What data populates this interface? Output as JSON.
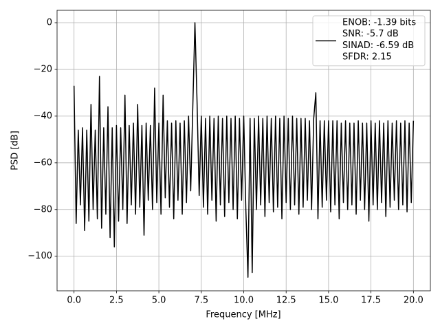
{
  "chart_data": {
    "type": "line",
    "xlabel": "Frequency [MHz]",
    "ylabel": "PSD [dB]",
    "x": [
      0,
      0.125,
      0.25,
      0.375,
      0.5,
      0.625,
      0.75,
      0.875,
      1,
      1.125,
      1.25,
      1.375,
      1.5,
      1.625,
      1.75,
      1.875,
      2,
      2.125,
      2.25,
      2.375,
      2.5,
      2.625,
      2.75,
      2.875,
      3,
      3.125,
      3.25,
      3.375,
      3.5,
      3.625,
      3.75,
      3.875,
      4,
      4.125,
      4.25,
      4.375,
      4.5,
      4.625,
      4.75,
      4.875,
      5,
      5.125,
      5.25,
      5.375,
      5.5,
      5.625,
      5.75,
      5.875,
      6,
      6.125,
      6.25,
      6.375,
      6.5,
      6.625,
      6.75,
      6.875,
      7,
      7.125,
      7.25,
      7.375,
      7.5,
      7.625,
      7.75,
      7.875,
      8,
      8.125,
      8.25,
      8.375,
      8.5,
      8.625,
      8.75,
      8.875,
      9,
      9.125,
      9.25,
      9.375,
      9.5,
      9.625,
      9.75,
      9.875,
      10,
      10.125,
      10.25,
      10.375,
      10.5,
      10.625,
      10.75,
      10.875,
      11,
      11.125,
      11.25,
      11.375,
      11.5,
      11.625,
      11.75,
      11.875,
      12,
      12.125,
      12.25,
      12.375,
      12.5,
      12.625,
      12.75,
      12.875,
      13,
      13.125,
      13.25,
      13.375,
      13.5,
      13.625,
      13.75,
      13.875,
      14,
      14.125,
      14.25,
      14.375,
      14.5,
      14.625,
      14.75,
      14.875,
      15,
      15.125,
      15.25,
      15.375,
      15.5,
      15.625,
      15.75,
      15.875,
      16,
      16.125,
      16.25,
      16.375,
      16.5,
      16.625,
      16.75,
      16.875,
      17,
      17.125,
      17.25,
      17.375,
      17.5,
      17.625,
      17.75,
      17.875,
      18,
      18.125,
      18.25,
      18.375,
      18.5,
      18.625,
      18.75,
      18.875,
      19,
      19.125,
      19.25,
      19.375,
      19.5,
      19.625,
      19.75,
      19.875,
      20
    ],
    "series": [
      {
        "name": [
          "ENOB: -1.39 bits",
          "SNR: -5.7 dB",
          "SINAD: -6.59 dB",
          "SFDR: 2.15"
        ],
        "color": "#000000",
        "values": [
          -27,
          -86,
          -46,
          -78,
          -45,
          -89,
          -46,
          -85,
          -35,
          -80,
          -46,
          -84,
          -23,
          -88,
          -45,
          -82,
          -36,
          -92,
          -45,
          -96,
          -44,
          -85,
          -45,
          -80,
          -31,
          -86,
          -44,
          -78,
          -43,
          -82,
          -35,
          -79,
          -44,
          -91,
          -43,
          -76,
          -44,
          -80,
          -28,
          -77,
          -43,
          -82,
          -31,
          -75,
          -42,
          -79,
          -43,
          -84,
          -42,
          -76,
          -43,
          -82,
          -42,
          -77,
          -40,
          -72,
          -36,
          0,
          -34,
          -74,
          -40,
          -79,
          -41,
          -82,
          -40,
          -76,
          -41,
          -85,
          -40,
          -78,
          -41,
          -83,
          -40,
          -77,
          -41,
          -80,
          -40,
          -84,
          -41,
          -76,
          -40,
          -80,
          -109,
          -41,
          -107,
          -41,
          -80,
          -40,
          -78,
          -41,
          -83,
          -40,
          -77,
          -41,
          -81,
          -40,
          -79,
          -41,
          -84,
          -40,
          -77,
          -41,
          -80,
          -40,
          -78,
          -41,
          -82,
          -41,
          -79,
          -41,
          -76,
          -42,
          -80,
          -41,
          -30,
          -84,
          -42,
          -79,
          -42,
          -76,
          -42,
          -81,
          -42,
          -78,
          -42,
          -84,
          -43,
          -77,
          -42,
          -80,
          -43,
          -78,
          -43,
          -82,
          -42,
          -76,
          -43,
          -80,
          -43,
          -85,
          -42,
          -78,
          -43,
          -80,
          -42,
          -77,
          -43,
          -83,
          -42,
          -79,
          -43,
          -76,
          -42,
          -80,
          -43,
          -78,
          -42,
          -81,
          -43,
          -77,
          -42
        ]
      }
    ],
    "xlim": [
      -1,
      21
    ],
    "ylim": [
      -114.8,
      5.3
    ],
    "xticks": [
      {
        "value": 0,
        "label": "0.0"
      },
      2.5,
      {
        "value": 5,
        "label": "5.0"
      },
      7.5,
      {
        "value": 10,
        "label": "10.0"
      },
      12.5,
      {
        "value": 15,
        "label": "15.0"
      },
      17.5,
      {
        "value": 20,
        "label": "20.0"
      }
    ],
    "yticks": [
      {
        "value": -100,
        "label": "−100"
      },
      {
        "value": -80,
        "label": "−80"
      },
      {
        "value": -60,
        "label": "−60"
      },
      {
        "value": -40,
        "label": "−40"
      },
      {
        "value": -20,
        "label": "−20"
      },
      0
    ],
    "grid": true,
    "legend": "upper right"
  }
}
